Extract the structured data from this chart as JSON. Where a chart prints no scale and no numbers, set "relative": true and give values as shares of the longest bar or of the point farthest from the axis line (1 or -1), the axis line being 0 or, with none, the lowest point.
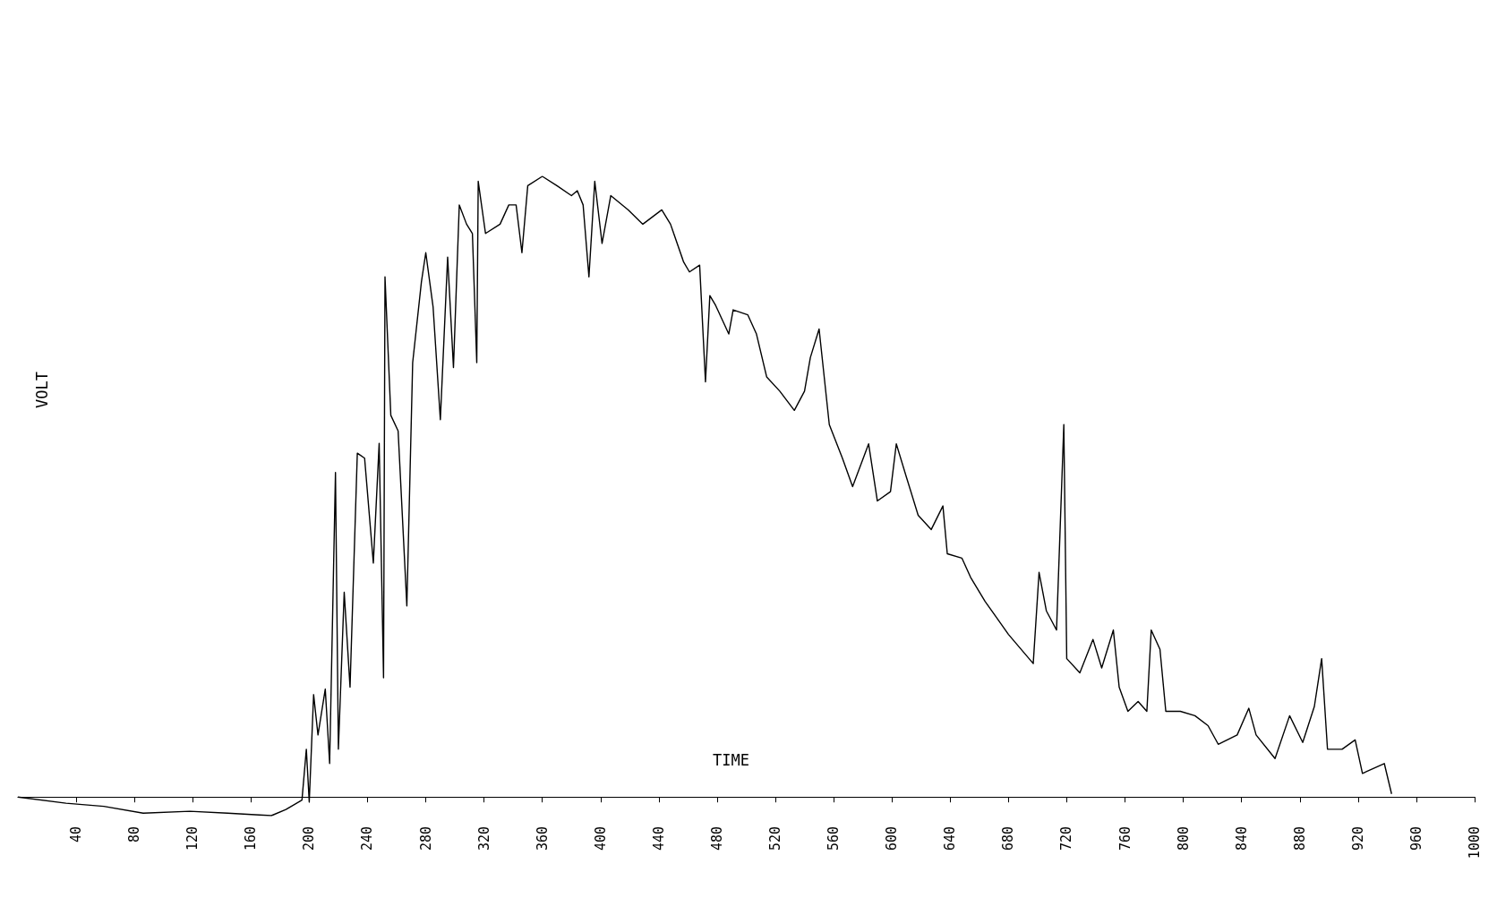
{
  "chart_data": {
    "type": "line",
    "xlabel": "TIME",
    "ylabel": "VOLT",
    "relative": true,
    "xlim": [
      0,
      1000
    ],
    "xticks": [
      40,
      80,
      120,
      160,
      200,
      240,
      280,
      320,
      360,
      400,
      440,
      480,
      520,
      560,
      600,
      640,
      680,
      720,
      760,
      800,
      840,
      880,
      920,
      960,
      1000
    ],
    "series": [
      {
        "color": "#000000",
        "x": [
          0,
          33,
          59,
          86,
          118,
          144,
          174,
          184,
          195,
          198,
          200,
          203,
          206,
          211,
          214,
          218,
          220,
          224,
          228,
          233,
          238,
          244,
          248,
          251,
          252,
          256,
          261,
          267,
          271,
          277,
          280,
          285,
          290,
          295,
          299,
          303,
          308,
          312,
          315,
          316,
          321,
          331,
          337,
          342,
          346,
          350,
          360,
          370,
          380,
          384,
          388,
          392,
          396,
          401,
          407,
          419,
          429,
          442,
          448,
          457,
          461,
          468,
          472,
          475,
          479,
          488,
          491,
          501,
          507,
          514,
          523,
          533,
          540,
          544,
          550,
          557,
          566,
          573,
          584,
          590,
          599,
          603,
          610,
          618,
          627,
          635,
          638,
          648,
          654,
          664,
          671,
          680,
          697,
          701,
          706,
          713,
          718,
          720,
          729,
          738,
          744,
          752,
          756,
          762,
          769,
          775,
          778,
          784,
          788,
          798,
          808,
          817,
          824,
          837,
          845,
          850,
          863,
          873,
          882,
          890,
          895,
          899,
          909,
          918,
          923,
          938,
          943
        ],
        "values": [
          0,
          -0.01,
          -0.015,
          -0.026,
          -0.023,
          -0.026,
          -0.03,
          -0.02,
          -0.005,
          0.077,
          -0.008,
          0.165,
          0.1,
          0.174,
          0.054,
          0.523,
          0.077,
          0.33,
          0.177,
          0.554,
          0.546,
          0.377,
          0.57,
          0.192,
          0.838,
          0.615,
          0.59,
          0.308,
          0.7,
          0.83,
          0.877,
          0.79,
          0.608,
          0.87,
          0.692,
          0.954,
          0.923,
          0.908,
          0.7,
          0.992,
          0.908,
          0.923,
          0.954,
          0.954,
          0.877,
          0.985,
          1,
          0.985,
          0.969,
          0.977,
          0.954,
          0.838,
          0.992,
          0.892,
          0.969,
          0.946,
          0.923,
          0.946,
          0.923,
          0.862,
          0.846,
          0.857,
          0.669,
          0.808,
          0.792,
          0.746,
          0.785,
          0.777,
          0.746,
          0.677,
          0.654,
          0.623,
          0.654,
          0.708,
          0.754,
          0.6,
          0.546,
          0.5,
          0.569,
          0.477,
          0.492,
          0.569,
          0.515,
          0.454,
          0.431,
          0.469,
          0.392,
          0.385,
          0.354,
          0.315,
          0.292,
          0.262,
          0.215,
          0.362,
          0.3,
          0.269,
          0.6,
          0.223,
          0.2,
          0.254,
          0.208,
          0.269,
          0.177,
          0.138,
          0.154,
          0.138,
          0.269,
          0.238,
          0.138,
          0.138,
          0.131,
          0.115,
          0.085,
          0.1,
          0.143,
          0.1,
          0.062,
          0.131,
          0.088,
          0.146,
          0.223,
          0.077,
          0.077,
          0.092,
          0.038,
          0.054,
          0.005
        ]
      }
    ]
  }
}
